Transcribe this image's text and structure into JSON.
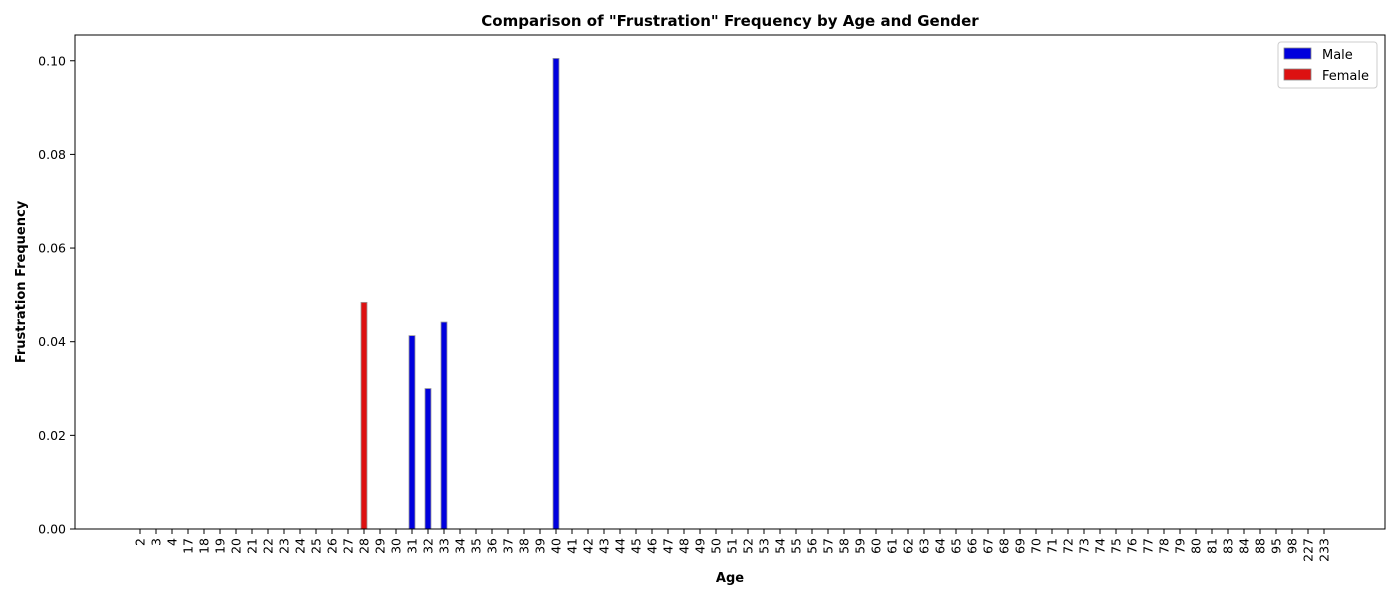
{
  "chart_data": {
    "type": "bar",
    "title": "Comparison of \"Frustration\" Frequency by Age and Gender",
    "xlabel": "Age",
    "ylabel": "Frustration Frequency",
    "ylim": [
      0,
      0.1055
    ],
    "yticks": [
      0.0,
      0.02,
      0.04,
      0.06,
      0.08,
      0.1
    ],
    "ytick_labels": [
      "0.00",
      "0.02",
      "0.04",
      "0.06",
      "0.08",
      "0.10"
    ],
    "categories": [
      "2",
      "3",
      "4",
      "17",
      "18",
      "19",
      "20",
      "21",
      "22",
      "23",
      "24",
      "25",
      "26",
      "27",
      "28",
      "29",
      "30",
      "31",
      "32",
      "33",
      "34",
      "35",
      "36",
      "37",
      "38",
      "39",
      "40",
      "41",
      "42",
      "43",
      "44",
      "45",
      "46",
      "47",
      "48",
      "49",
      "50",
      "51",
      "52",
      "53",
      "54",
      "55",
      "56",
      "57",
      "58",
      "59",
      "60",
      "61",
      "62",
      "63",
      "64",
      "65",
      "66",
      "67",
      "68",
      "69",
      "70",
      "71",
      "72",
      "73",
      "74",
      "75",
      "76",
      "77",
      "78",
      "79",
      "80",
      "81",
      "83",
      "84",
      "88",
      "95",
      "98",
      "227",
      "233"
    ],
    "series": [
      {
        "name": "Male",
        "color": "#0000dd",
        "values": [
          0,
          0,
          0,
          0,
          0,
          0,
          0,
          0,
          0,
          0,
          0,
          0,
          0,
          0,
          0,
          0,
          0,
          0.0413,
          0.03,
          0.0442,
          0,
          0,
          0,
          0,
          0,
          0,
          0.1005,
          0,
          0,
          0,
          0,
          0,
          0,
          0,
          0,
          0,
          0,
          0,
          0,
          0,
          0,
          0,
          0,
          0,
          0,
          0,
          0,
          0,
          0,
          0,
          0,
          0,
          0,
          0,
          0,
          0,
          0,
          0,
          0,
          0,
          0,
          0,
          0,
          0,
          0,
          0,
          0,
          0,
          0,
          0,
          0,
          0,
          0,
          0,
          0
        ]
      },
      {
        "name": "Female",
        "color": "#dd1111",
        "values": [
          0,
          0,
          0,
          0,
          0,
          0,
          0,
          0,
          0,
          0,
          0,
          0,
          0,
          0,
          0.0484,
          0,
          0,
          0,
          0,
          0,
          0,
          0,
          0,
          0,
          0,
          0,
          0,
          0,
          0,
          0,
          0,
          0,
          0,
          0,
          0,
          0,
          0,
          0,
          0,
          0,
          0,
          0,
          0,
          0,
          0,
          0,
          0,
          0,
          0,
          0,
          0,
          0,
          0,
          0,
          0,
          0,
          0,
          0,
          0,
          0,
          0,
          0,
          0,
          0,
          0,
          0,
          0,
          0,
          0,
          0,
          0,
          0,
          0,
          0,
          0
        ]
      }
    ],
    "legend": {
      "position": "top-right",
      "entries": [
        "Male",
        "Female"
      ]
    },
    "grid": false
  }
}
